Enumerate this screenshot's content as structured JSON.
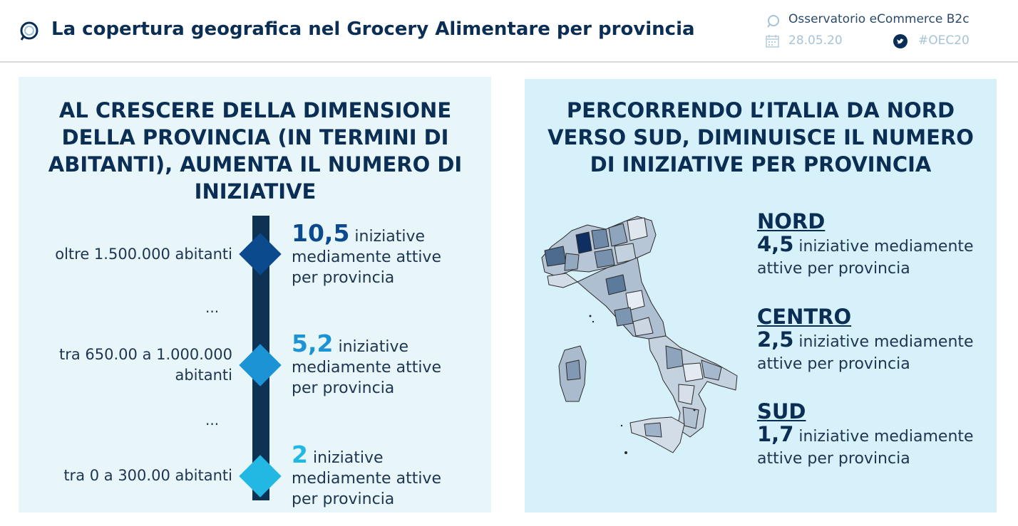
{
  "header": {
    "title": "La copertura geografica nel Grocery Alimentare per provincia",
    "organization": "Osservatorio eCommerce B2c",
    "date": "28.05.20",
    "hashtag": "#OEC20"
  },
  "left_panel": {
    "title": "AL CRESCERE DELLA DIMENSIONE DELLA PROVINCIA (IN TERMINI DI ABITANTI), AUMENTA IL NUMERO DI INIZIATIVE",
    "ellipsis": "...",
    "levels": [
      {
        "label": "oltre 1.500.000 abitanti",
        "value": "10,5",
        "text": "iniziative mediamente attive per provincia",
        "color": "#0b4a8c"
      },
      {
        "label": "tra 650.00 a 1.000.000 abitanti",
        "value": "5,2",
        "text": "iniziative mediamente attive per provincia",
        "color": "#1b93d4"
      },
      {
        "label": "tra 0 a 300.00 abitanti",
        "value": "2",
        "text": "iniziative mediamente attive per provincia",
        "color": "#23b8e4"
      }
    ]
  },
  "right_panel": {
    "title": "PERCORRENDO L’ITALIA DA NORD VERSO SUD, DIMINUISCE IL NUMERO DI INIZIATIVE PER PROVINCIA",
    "regions": [
      {
        "name": "NORD",
        "value": "4,5",
        "text": "iniziative mediamente attive per provincia"
      },
      {
        "name": "CENTRO",
        "value": "2,5",
        "text": "iniziative mediamente attive per provincia"
      },
      {
        "name": "SUD",
        "value": "1,7",
        "text": "iniziative mediamente attive per provincia"
      }
    ]
  },
  "icons": [
    "observatory-logo-icon",
    "calendar-icon",
    "twitter-icon",
    "italy-map"
  ]
}
